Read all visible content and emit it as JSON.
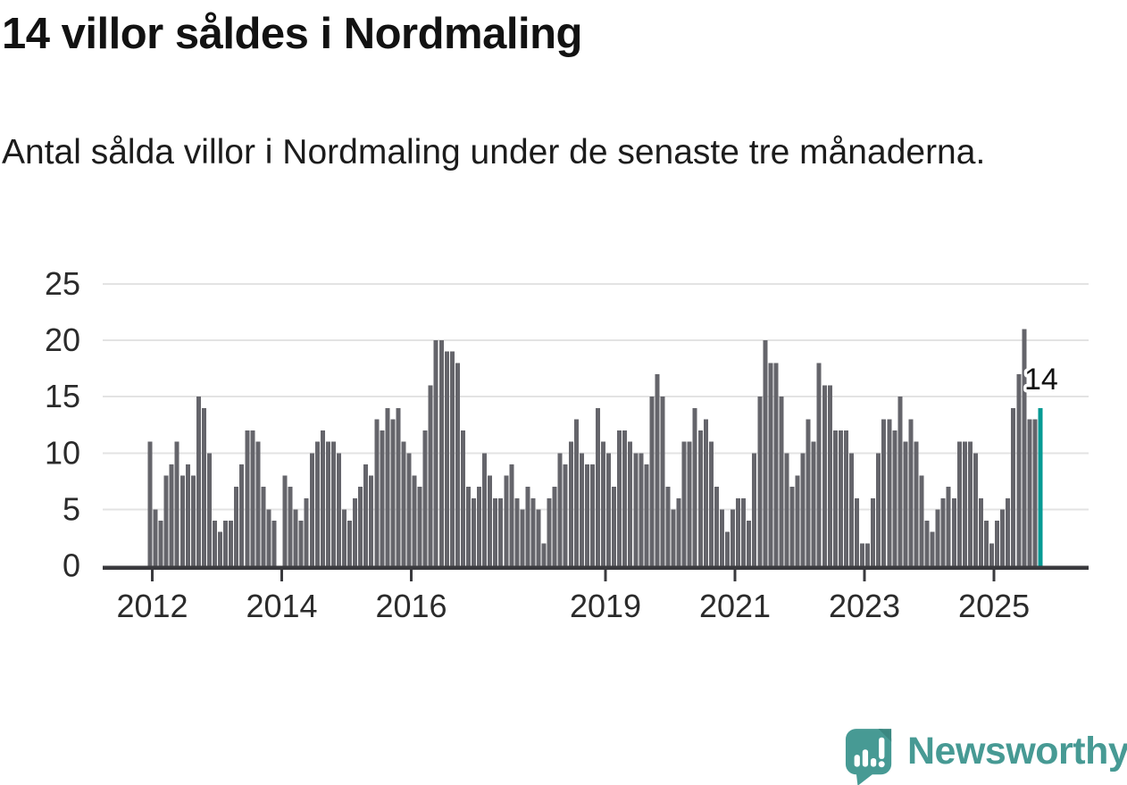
{
  "header": {
    "title": "14 villor såldes i Nordmaling",
    "subtitle": "Antal sålda villor i Nordmaling under de senaste tre månaderna."
  },
  "annotation": {
    "label": "14"
  },
  "footer": {
    "brand": "Newsworthy",
    "icon": "newsworthy-speech-bubble-chart-icon"
  },
  "colors": {
    "bar": "#65656b",
    "accent": "#049a94",
    "axis": "#3a3a3e",
    "grid": "#e3e3e3",
    "tick_text": "#2b2b2b",
    "annotation_text": "#111111",
    "annotation_halo": "#ffffff",
    "logo": "#479a94",
    "logo_fold": "#3a8781"
  },
  "chart_data": {
    "type": "bar",
    "title": "14 villor såldes i Nordmaling",
    "subtitle": "Antal sålda villor i Nordmaling under de senaste tre månaderna.",
    "frequency": "monthly",
    "start": "2012-01",
    "xlabel": "",
    "ylabel": "",
    "ylim": [
      0,
      25
    ],
    "grid": true,
    "yticks": [
      0,
      5,
      10,
      15,
      20,
      25
    ],
    "xticks": [
      {
        "label": "2012",
        "index": 0
      },
      {
        "label": "2014",
        "index": 24
      },
      {
        "label": "2016",
        "index": 48
      },
      {
        "label": "2019",
        "index": 84
      },
      {
        "label": "2021",
        "index": 108
      },
      {
        "label": "2023",
        "index": 132
      },
      {
        "label": "2025",
        "index": 156
      }
    ],
    "values": [
      11,
      5,
      4,
      8,
      9,
      11,
      8,
      9,
      8,
      15,
      14,
      10,
      4,
      3,
      4,
      4,
      7,
      9,
      12,
      12,
      11,
      7,
      5,
      4,
      0,
      8,
      7,
      5,
      4,
      6,
      10,
      11,
      12,
      11,
      11,
      10,
      5,
      4,
      6,
      7,
      9,
      8,
      13,
      12,
      14,
      13,
      14,
      11,
      10,
      8,
      7,
      12,
      16,
      20,
      20,
      19,
      19,
      18,
      12,
      7,
      6,
      7,
      10,
      8,
      6,
      6,
      8,
      9,
      6,
      5,
      7,
      6,
      5,
      2,
      6,
      7,
      10,
      9,
      11,
      13,
      10,
      9,
      9,
      14,
      11,
      10,
      7,
      12,
      12,
      11,
      10,
      10,
      9,
      15,
      17,
      15,
      7,
      5,
      6,
      11,
      11,
      14,
      12,
      13,
      11,
      7,
      5,
      3,
      5,
      6,
      6,
      4,
      10,
      15,
      20,
      18,
      18,
      15,
      10,
      7,
      8,
      10,
      13,
      11,
      18,
      16,
      16,
      12,
      12,
      12,
      10,
      6,
      2,
      2,
      6,
      10,
      13,
      13,
      12,
      15,
      11,
      13,
      11,
      8,
      4,
      3,
      5,
      6,
      7,
      6,
      11,
      11,
      11,
      10,
      6,
      4,
      2,
      4,
      5,
      6,
      14,
      17,
      21,
      13,
      13,
      14
    ],
    "highlight": {
      "index": 165,
      "value": 14,
      "label": "14"
    },
    "legend_position": "none"
  }
}
